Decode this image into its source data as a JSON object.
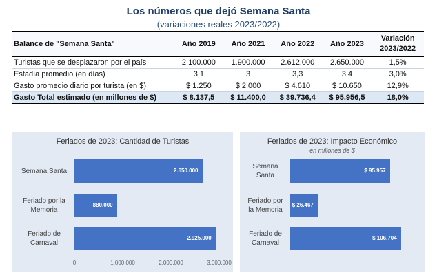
{
  "header": {
    "title": "Los números que dejó Semana Santa",
    "subtitle": "(variaciones reales 2023/2022)"
  },
  "table": {
    "columns": [
      "Balance de \"Semana Santa\"",
      "Año 2019",
      "Año 2021",
      "Año 2022",
      "Año 2023",
      "Variación 2023/2022"
    ],
    "rows": [
      {
        "label": "Turistas que se desplazaron por el país",
        "values": [
          "2.100.000",
          "1.900.000",
          "2.612.000",
          "2.650.000",
          "1,5%"
        ]
      },
      {
        "label": "Estadía promedio (en días)",
        "values": [
          "3,1",
          "3",
          "3,3",
          "3,4",
          "3,0%"
        ]
      },
      {
        "label": "Gasto promedio diario por turista (en $)",
        "values": [
          "$ 1.250",
          "$ 2.000",
          "$ 4.610",
          "$ 10.650",
          "12,9%"
        ]
      },
      {
        "label": "Gasto Total estimado (en millones de $)",
        "values": [
          "$ 8.137,5",
          "$ 11.400,0",
          "$ 39.736,4",
          "$ 95.956,5",
          "18,0%"
        ]
      }
    ]
  },
  "chart_data": [
    {
      "type": "bar",
      "orientation": "horizontal",
      "title": "Feriados de 2023: Cantidad de Turistas",
      "categories": [
        "Semana Santa",
        "Feriado por la Memoria",
        "Feriado de Carnaval"
      ],
      "category_lines": [
        [
          "Semana Santa"
        ],
        [
          "Feriado por la",
          "Memoria"
        ],
        [
          "Feriado de",
          "Carnaval"
        ]
      ],
      "values": [
        2650000,
        880000,
        2925000
      ],
      "data_labels": [
        "2.650.000",
        "880.000",
        "2.925.000"
      ],
      "xlim": [
        0,
        3000000
      ],
      "x_ticks": [
        0,
        1000000,
        2000000,
        3000000
      ],
      "x_tick_labels": [
        "0",
        "1.000.000",
        "2.000.000",
        "3.000.000"
      ],
      "grid": false,
      "color": "#4472c4"
    },
    {
      "type": "bar",
      "orientation": "horizontal",
      "title": "Feriados de 2023: Impacto Económico",
      "subtitle": "en millones de $",
      "categories": [
        "Semana Santa",
        "Feriado por la Memoria",
        "Feriado de Carnaval"
      ],
      "category_lines": [
        [
          "Semana",
          "Santa"
        ],
        [
          "Feriado por",
          "la Memoria"
        ],
        [
          "Feriado de",
          "Carnaval"
        ]
      ],
      "values": [
        95957,
        26467,
        106704
      ],
      "data_labels": [
        "$ 95.957",
        "$ 26.467",
        "$ 106.704"
      ],
      "grid": false,
      "color": "#4472c4"
    }
  ]
}
